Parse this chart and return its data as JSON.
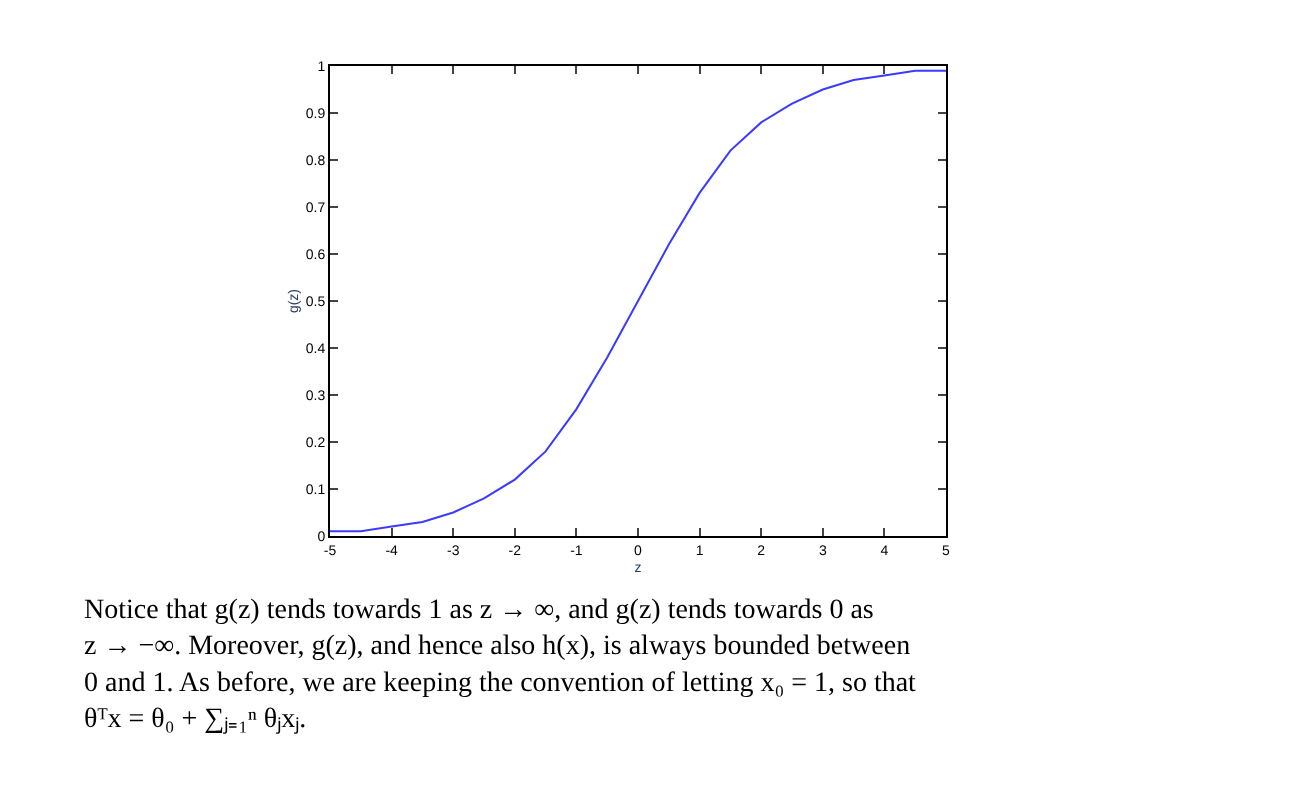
{
  "chart_data": {
    "type": "line",
    "xlabel": "z",
    "ylabel": "g(z)",
    "x": [
      -5,
      -4.5,
      -4,
      -3.5,
      -3,
      -2.5,
      -2,
      -1.5,
      -1,
      -0.5,
      0,
      0.5,
      1,
      1.5,
      2,
      2.5,
      3,
      3.5,
      4,
      4.5,
      5
    ],
    "series": [
      {
        "color": "#3b3bff",
        "values": [
          0.01,
          0.01,
          0.02,
          0.03,
          0.05,
          0.08,
          0.12,
          0.18,
          0.27,
          0.38,
          0.5,
          0.62,
          0.73,
          0.82,
          0.88,
          0.92,
          0.95,
          0.97,
          0.98,
          0.99,
          0.99
        ]
      }
    ],
    "xlim": [
      -5,
      5
    ],
    "xticks": [
      -5,
      -4,
      -3,
      -2,
      -1,
      0,
      1,
      2,
      3,
      4,
      5
    ],
    "ylim": [
      0,
      1
    ],
    "yticks": [
      0,
      0.1,
      0.2,
      0.3,
      0.4,
      0.5,
      0.6,
      0.7,
      0.8,
      0.9,
      1
    ],
    "legend": false,
    "marker": "none",
    "line_style": "solid",
    "annotations": [
      "Notice that g(z) tends towards 1 as z → ∞, and g(z) tends towards 0 as\nz → −∞. Moreover, g(z), and hence also h(x), is always bounded between\n0 and 1. As before, we are keeping the convention of letting x₀ = 1, so that\nθᵀx = θ₀ + ∑ⱼ₌₁ⁿ θⱼxⱼ."
    ]
  }
}
